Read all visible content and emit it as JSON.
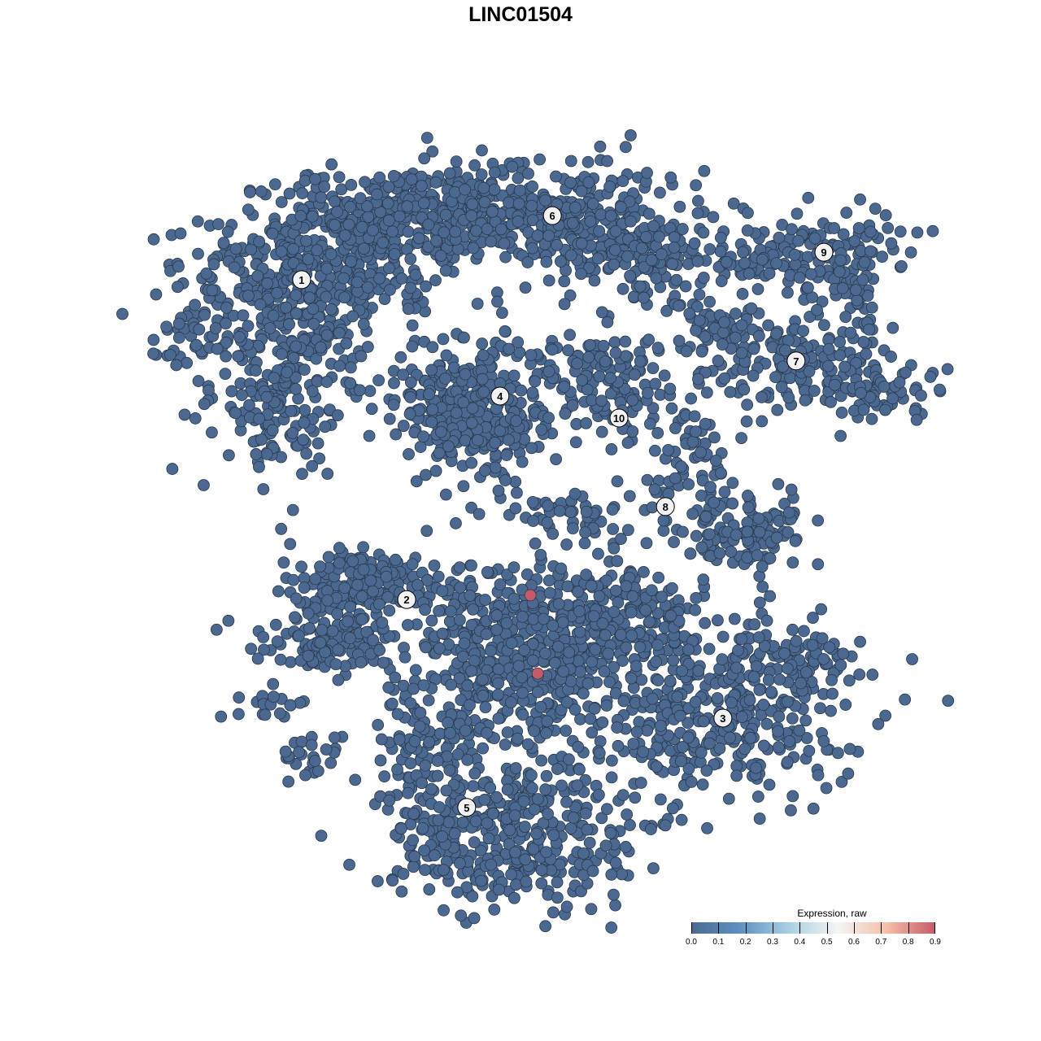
{
  "chart_data": {
    "type": "scatter",
    "title": "LINC01504",
    "xlabel": "",
    "ylabel": "",
    "xlim": [
      -10,
      11
    ],
    "ylim": [
      -10.5,
      10
    ],
    "grid": false,
    "axes_visible": false,
    "point_color_default": "#4a6890",
    "point_edge_color": "#2b3a4d",
    "clusters": [
      {
        "label": "1",
        "center": [
          -5.98,
          6.58
        ]
      },
      {
        "label": "2",
        "center": [
          -3.11,
          -2.16
        ]
      },
      {
        "label": "3",
        "center": [
          5.53,
          -5.4
        ]
      },
      {
        "label": "4",
        "center": [
          -0.56,
          3.4
        ]
      },
      {
        "label": "5",
        "center": [
          -1.47,
          -7.84
        ]
      },
      {
        "label": "6",
        "center": [
          0.87,
          8.33
        ]
      },
      {
        "label": "7",
        "center": [
          7.53,
          4.36
        ]
      },
      {
        "label": "8",
        "center": [
          3.96,
          0.38
        ]
      },
      {
        "label": "9",
        "center": [
          8.29,
          7.33
        ]
      },
      {
        "label": "10",
        "center": [
          2.69,
          2.8
        ]
      }
    ],
    "highlighted_cells": [
      {
        "x": 0.27,
        "y": -2.04,
        "expression": 0.9,
        "color": "#c65a68"
      },
      {
        "x": 0.47,
        "y": -4.18,
        "expression": 0.9,
        "color": "#c65a68"
      }
    ],
    "baseline_expression": 0.0,
    "legend": {
      "title": "Expression, raw",
      "placement": "bottom-right",
      "range": [
        0.0,
        0.9
      ],
      "ticks": [
        "0.0",
        "0.1",
        "0.2",
        "0.3",
        "0.4",
        "0.5",
        "0.6",
        "0.7",
        "0.8",
        "0.9"
      ],
      "colors": [
        "#4d6a91",
        "#5e90c2",
        "#a9d0e2",
        "#f5f5f5",
        "#f4c0a8",
        "#c65a68"
      ]
    }
  }
}
